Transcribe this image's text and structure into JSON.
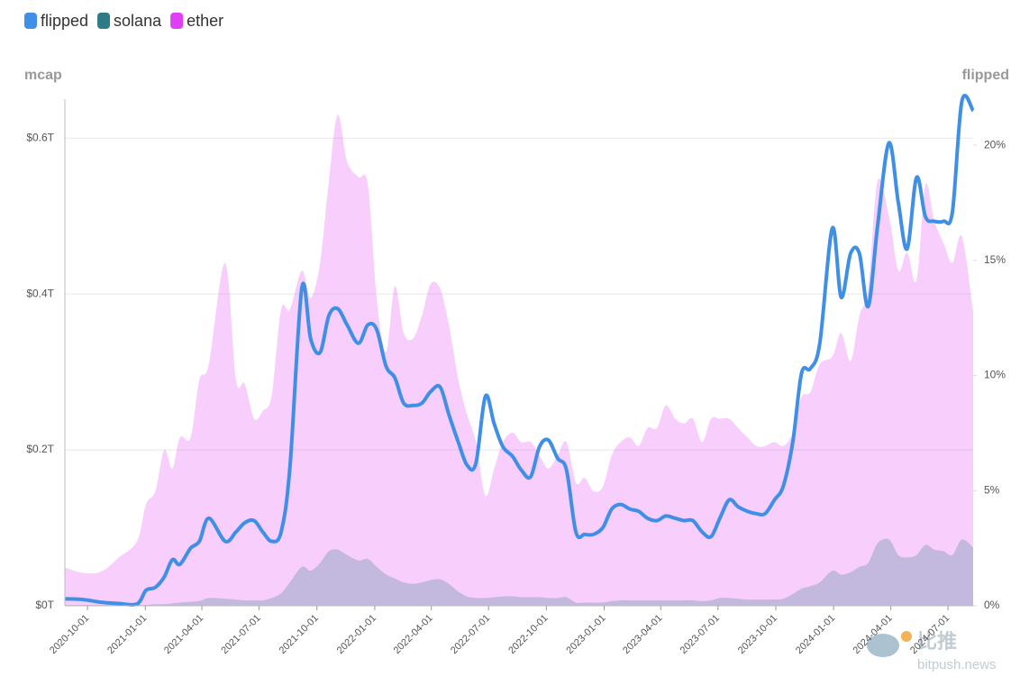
{
  "chart_data": {
    "type": "area-line",
    "y_label": "mcap",
    "y2_label": "flipped",
    "x": [
      "2020-08-26",
      "2020-09-24",
      "2020-10-23",
      "2020-11-20",
      "2020-12-19",
      "2021-01-02",
      "2021-01-17",
      "2021-01-31",
      "2021-02-13",
      "2021-02-25",
      "2021-03-14",
      "2021-03-28",
      "2021-04-12",
      "2021-05-08",
      "2021-05-25",
      "2021-06-08",
      "2021-06-23",
      "2021-07-07",
      "2021-07-21",
      "2021-08-05",
      "2021-08-19",
      "2021-09-07",
      "2021-09-21",
      "2021-10-06",
      "2021-10-20",
      "2021-11-03",
      "2021-11-18",
      "2021-12-06",
      "2021-12-21",
      "2022-01-04",
      "2022-01-19",
      "2022-02-02",
      "2022-02-16",
      "2022-03-03",
      "2022-03-17",
      "2022-03-31",
      "2022-04-15",
      "2022-04-29",
      "2022-05-14",
      "2022-05-28",
      "2022-06-11",
      "2022-06-26",
      "2022-07-10",
      "2022-07-24",
      "2022-08-08",
      "2022-08-22",
      "2022-09-06",
      "2022-09-20",
      "2022-10-04",
      "2022-10-19",
      "2022-11-02",
      "2022-11-17",
      "2022-12-01",
      "2022-12-15",
      "2022-12-30",
      "2023-01-13",
      "2023-01-27",
      "2023-02-11",
      "2023-02-25",
      "2023-03-11",
      "2023-03-26",
      "2023-04-09",
      "2023-04-24",
      "2023-05-08",
      "2023-05-22",
      "2023-06-06",
      "2023-06-20",
      "2023-07-04",
      "2023-07-19",
      "2023-08-02",
      "2023-08-17",
      "2023-08-31",
      "2023-09-14",
      "2023-09-29",
      "2023-10-13",
      "2023-10-28",
      "2023-11-11",
      "2023-11-25",
      "2023-12-10",
      "2023-12-30",
      "2024-01-13",
      "2024-01-28",
      "2024-02-11",
      "2024-02-25",
      "2024-03-11",
      "2024-03-29",
      "2024-04-13",
      "2024-04-27",
      "2024-05-12",
      "2024-05-26",
      "2024-06-09",
      "2024-06-24",
      "2024-07-08",
      "2024-07-23",
      "2024-08-10"
    ],
    "series": [
      {
        "name": "flipped",
        "color": "#3f8fe6",
        "style": "line",
        "axis": "y2",
        "values": [
          0.3,
          0.27,
          0.15,
          0.1,
          0.08,
          0.67,
          0.8,
          1.25,
          2.0,
          1.8,
          2.5,
          2.8,
          3.8,
          2.8,
          3.2,
          3.6,
          3.7,
          3.2,
          2.8,
          3.2,
          6.0,
          13.8,
          11.6,
          11.0,
          12.6,
          12.9,
          12.2,
          11.4,
          12.2,
          12.0,
          10.4,
          9.9,
          8.8,
          8.7,
          8.8,
          9.3,
          9.5,
          8.3,
          7.1,
          6.1,
          6.2,
          9.1,
          7.9,
          6.9,
          6.5,
          5.9,
          5.6,
          6.9,
          7.2,
          6.4,
          5.9,
          3.2,
          3.1,
          3.1,
          3.4,
          4.2,
          4.4,
          4.2,
          4.1,
          3.8,
          3.7,
          3.9,
          3.8,
          3.7,
          3.7,
          3.2,
          3.0,
          3.8,
          4.6,
          4.3,
          4.1,
          4.0,
          4.0,
          4.6,
          5.2,
          7.1,
          10.1,
          10.3,
          11.4,
          16.4,
          13.4,
          15.3,
          15.3,
          13.0,
          16.5,
          20.1,
          17.5,
          15.5,
          18.6,
          16.9,
          16.7,
          16.7,
          17.1,
          21.9,
          21.5
        ]
      },
      {
        "name": "solana",
        "color": "#2e7b85",
        "style": "area",
        "values": [
          0.001,
          0.001,
          0.001,
          0.001,
          0.001,
          0.001,
          0.002,
          0.002,
          0.003,
          0.004,
          0.005,
          0.006,
          0.01,
          0.009,
          0.008,
          0.007,
          0.007,
          0.007,
          0.01,
          0.016,
          0.03,
          0.05,
          0.045,
          0.055,
          0.07,
          0.072,
          0.065,
          0.058,
          0.06,
          0.05,
          0.04,
          0.035,
          0.03,
          0.028,
          0.03,
          0.033,
          0.034,
          0.028,
          0.018,
          0.012,
          0.01,
          0.01,
          0.011,
          0.012,
          0.012,
          0.011,
          0.011,
          0.011,
          0.01,
          0.01,
          0.011,
          0.004,
          0.004,
          0.004,
          0.004,
          0.006,
          0.007,
          0.007,
          0.007,
          0.007,
          0.007,
          0.007,
          0.007,
          0.007,
          0.007,
          0.006,
          0.007,
          0.01,
          0.01,
          0.009,
          0.008,
          0.008,
          0.008,
          0.008,
          0.009,
          0.015,
          0.022,
          0.025,
          0.03,
          0.045,
          0.04,
          0.043,
          0.05,
          0.055,
          0.08,
          0.085,
          0.065,
          0.062,
          0.065,
          0.078,
          0.072,
          0.07,
          0.065,
          0.085,
          0.075
        ]
      },
      {
        "name": "ether",
        "color": "#e040f5",
        "style": "area",
        "values": [
          0.049,
          0.042,
          0.044,
          0.062,
          0.083,
          0.13,
          0.147,
          0.2,
          0.176,
          0.216,
          0.216,
          0.29,
          0.31,
          0.44,
          0.29,
          0.285,
          0.24,
          0.25,
          0.27,
          0.38,
          0.38,
          0.43,
          0.395,
          0.44,
          0.545,
          0.63,
          0.57,
          0.55,
          0.54,
          0.395,
          0.326,
          0.41,
          0.35,
          0.343,
          0.372,
          0.413,
          0.407,
          0.36,
          0.29,
          0.245,
          0.21,
          0.141,
          0.176,
          0.21,
          0.222,
          0.21,
          0.21,
          0.193,
          0.176,
          0.193,
          0.21,
          0.158,
          0.164,
          0.147,
          0.153,
          0.193,
          0.21,
          0.216,
          0.205,
          0.228,
          0.228,
          0.257,
          0.24,
          0.234,
          0.24,
          0.21,
          0.24,
          0.24,
          0.24,
          0.228,
          0.216,
          0.205,
          0.205,
          0.21,
          0.205,
          0.222,
          0.268,
          0.274,
          0.31,
          0.32,
          0.35,
          0.314,
          0.372,
          0.407,
          0.545,
          0.5,
          0.43,
          0.453,
          0.418,
          0.54,
          0.494,
          0.465,
          0.44,
          0.474,
          0.378
        ]
      }
    ],
    "xlim": [
      "2020-08-26",
      "2024-08-10"
    ],
    "xticks": [
      "2020-10-01",
      "2021-01-01",
      "2021-04-01",
      "2021-07-01",
      "2021-10-01",
      "2022-01-01",
      "2022-04-01",
      "2022-07-01",
      "2022-10-01",
      "2023-01-01",
      "2023-04-01",
      "2023-07-01",
      "2023-10-01",
      "2024-01-01",
      "2024-04-01",
      "2024-07-01"
    ],
    "ylim": [
      0,
      0.65
    ],
    "yticks": [
      {
        "value": 0,
        "label": "$0T"
      },
      {
        "value": 0.2,
        "label": "$0.2T"
      },
      {
        "value": 0.4,
        "label": "$0.4T"
      },
      {
        "value": 0.6,
        "label": "$0.6T"
      }
    ],
    "y2lim": [
      0,
      22
    ],
    "y2ticks": [
      {
        "value": 0,
        "label": "0%"
      },
      {
        "value": 5,
        "label": "5%"
      },
      {
        "value": 10,
        "label": "10%"
      },
      {
        "value": 15,
        "label": "15%"
      },
      {
        "value": 20,
        "label": "20%"
      }
    ],
    "grid": true,
    "legend": "top-left"
  },
  "watermark": {
    "brand": "比推",
    "site": "bitpush.news"
  }
}
